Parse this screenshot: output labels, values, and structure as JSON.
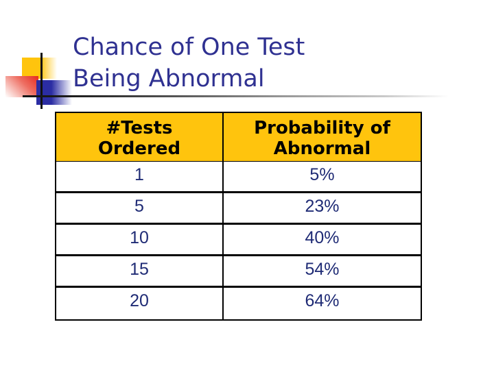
{
  "slide": {
    "title": {
      "line1": "Chance of One Test",
      "line2": "Being Abnormal"
    }
  },
  "colors": {
    "title_text": "#2F3191",
    "table_header_bg": "#FFC40D",
    "table_header_text": "#000000",
    "table_cell_text": "#1F2B75",
    "logo_yellow": "#FFC40D",
    "logo_red": "#E62A1E",
    "logo_blue": "#2B2DA3"
  },
  "table": {
    "headers": [
      {
        "label": "#Tests Ordered",
        "lines": [
          "#Tests",
          "Ordered"
        ]
      },
      {
        "label": "Probability of Abnormal",
        "lines": [
          "Probability of",
          "Abnormal"
        ]
      }
    ],
    "rows": [
      {
        "tests": "1",
        "probability": "5%"
      },
      {
        "tests": "5",
        "probability": "23%"
      },
      {
        "tests": "10",
        "probability": "40%"
      },
      {
        "tests": "15",
        "probability": "54%"
      },
      {
        "tests": "20",
        "probability": "64%"
      }
    ]
  },
  "chart_data": {
    "type": "table",
    "title": "Chance of One Test Being Abnormal",
    "columns": [
      "#Tests Ordered",
      "Probability of Abnormal"
    ],
    "rows": [
      [
        "1",
        "5%"
      ],
      [
        "5",
        "23%"
      ],
      [
        "10",
        "40%"
      ],
      [
        "15",
        "54%"
      ],
      [
        "20",
        "64%"
      ]
    ]
  }
}
